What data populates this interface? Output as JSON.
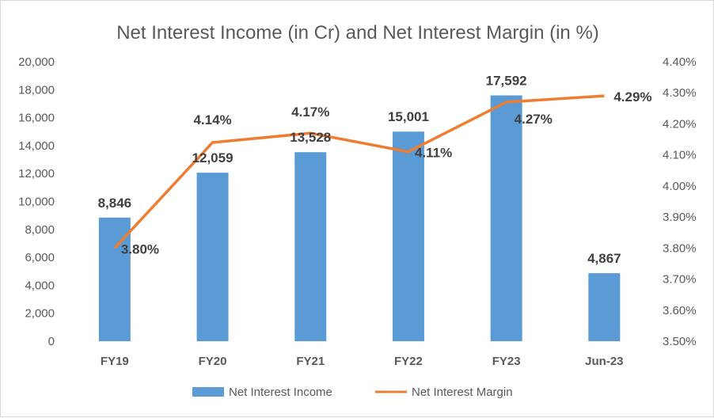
{
  "chart_data": {
    "type": "bar+line",
    "title": "Net Interest Income (in Cr) and Net Interest Margin (in %)",
    "categories": [
      "FY19",
      "FY20",
      "FY21",
      "FY22",
      "FY23",
      "Jun-23"
    ],
    "series": [
      {
        "name": "Net Interest Income",
        "type": "bar",
        "axis": "left",
        "color": "#5b9bd5",
        "values": [
          8846,
          12059,
          13528,
          15001,
          17592,
          4867
        ],
        "labels": [
          "8,846",
          "12,059",
          "13,528",
          "15,001",
          "17,592",
          "4,867"
        ]
      },
      {
        "name": "Net Interest Margin",
        "type": "line",
        "axis": "right",
        "color": "#ed7d31",
        "values": [
          3.8,
          4.14,
          4.17,
          4.11,
          4.27,
          4.29
        ],
        "labels": [
          "3.80%",
          "4.14%",
          "4.17%",
          "4.11%",
          "4.27%",
          "4.29%"
        ]
      }
    ],
    "y_left": {
      "range": [
        0,
        20000
      ],
      "ticks": [
        "0",
        "2,000",
        "4,000",
        "6,000",
        "8,000",
        "10,000",
        "12,000",
        "14,000",
        "16,000",
        "18,000",
        "20,000"
      ]
    },
    "y_right": {
      "range": [
        3.5,
        4.4
      ],
      "ticks": [
        "3.50%",
        "3.60%",
        "3.70%",
        "3.80%",
        "3.90%",
        "4.00%",
        "4.10%",
        "4.20%",
        "4.30%",
        "4.40%"
      ]
    },
    "grid": false,
    "legend": "bottom"
  }
}
